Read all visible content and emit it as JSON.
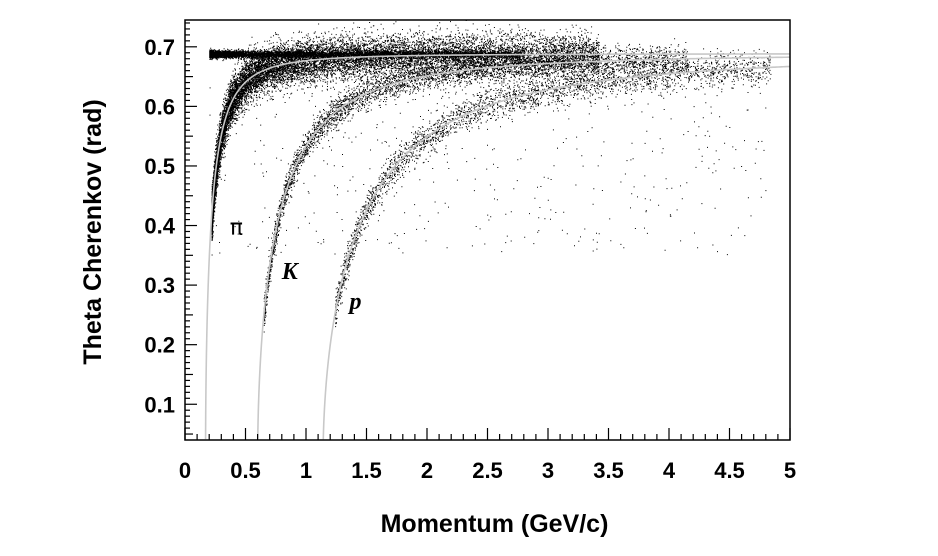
{
  "chart_data": {
    "type": "scatter",
    "title": "",
    "xlabel": "Momentum (GeV/c)",
    "ylabel": "Theta Cherenkov (rad)",
    "xlim": [
      0,
      5
    ],
    "ylim": [
      0.04,
      0.745
    ],
    "x_ticks": [
      0,
      0.5,
      1,
      1.5,
      2,
      2.5,
      3,
      3.5,
      4,
      4.5,
      5
    ],
    "x_tick_labels": [
      "0",
      "0.5",
      "1",
      "1.5",
      "2",
      "2.5",
      "3",
      "3.5",
      "4",
      "4.5",
      "5"
    ],
    "y_ticks": [
      0.1,
      0.2,
      0.3,
      0.4,
      0.5,
      0.6,
      0.7
    ],
    "y_tick_labels": [
      "0.1",
      "0.2",
      "0.3",
      "0.4",
      "0.5",
      "0.6",
      "0.7"
    ],
    "grid": false,
    "legend": "none",
    "refractive_index": 1.295,
    "series": [
      {
        "name": "π",
        "mass_gev": 0.1396,
        "color": "#c8c8c8",
        "kind": "curve"
      },
      {
        "name": "K",
        "mass_gev": 0.4937,
        "color": "#c8c8c8",
        "kind": "curve"
      },
      {
        "name": "p",
        "mass_gev": 0.9383,
        "color": "#c8c8c8",
        "kind": "curve"
      }
    ],
    "curve_labels": [
      {
        "text": "π",
        "x": 0.37,
        "y": 0.385
      },
      {
        "text": "K",
        "x": 0.8,
        "y": 0.31
      },
      {
        "text": "p",
        "x": 1.36,
        "y": 0.26
      }
    ],
    "scatter_color": "#000000",
    "plateau_theta": 0.688
  }
}
